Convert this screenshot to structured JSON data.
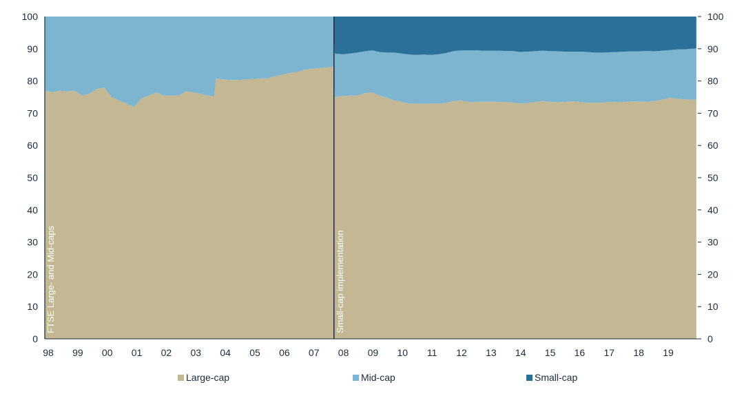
{
  "chart_data": {
    "type": "area",
    "stacked": true,
    "x_tick_labels": [
      "98",
      "99",
      "00",
      "01",
      "02",
      "03",
      "04",
      "05",
      "06",
      "07",
      "08",
      "09",
      "10",
      "11",
      "12",
      "13",
      "14",
      "15",
      "16",
      "17",
      "18",
      "19"
    ],
    "y_ticks": [
      0,
      10,
      20,
      30,
      40,
      50,
      60,
      70,
      80,
      90,
      100
    ],
    "ylim": [
      0,
      100
    ],
    "y_axis_both_sides": true,
    "grid": false,
    "legend_placement": "bottom",
    "colors": {
      "large": "#c4b894",
      "mid": "#7db4d0",
      "small": "#2b7098",
      "divider": "#1b2a3a",
      "text": "#1b2a3a"
    },
    "annotations": [
      {
        "text": "FTSE Large- and Mid-caps",
        "at_x": 1998.0
      },
      {
        "text": "Small-cap implementation",
        "at_x": 2007.72
      }
    ],
    "x": [
      1998.0,
      1998.25,
      1998.5,
      1998.75,
      1999.0,
      1999.25,
      1999.5,
      1999.75,
      2000.0,
      2000.25,
      2000.5,
      2000.75,
      2001.0,
      2001.25,
      2001.5,
      2001.75,
      2002.0,
      2002.25,
      2002.5,
      2002.75,
      2003.0,
      2003.25,
      2003.5,
      2003.7,
      2003.75,
      2004.0,
      2004.25,
      2004.5,
      2004.75,
      2005.0,
      2005.25,
      2005.5,
      2005.75,
      2006.0,
      2006.25,
      2006.5,
      2006.75,
      2007.0,
      2007.25,
      2007.5,
      2007.7,
      2007.75,
      2008.0,
      2008.25,
      2008.5,
      2008.75,
      2009.0,
      2009.25,
      2009.5,
      2009.75,
      2010.0,
      2010.25,
      2010.5,
      2010.75,
      2011.0,
      2011.25,
      2011.5,
      2011.75,
      2012.0,
      2012.25,
      2012.5,
      2012.75,
      2013.0,
      2013.25,
      2013.5,
      2013.75,
      2014.0,
      2014.25,
      2014.5,
      2014.75,
      2015.0,
      2015.25,
      2015.5,
      2015.75,
      2016.0,
      2016.25,
      2016.5,
      2016.75,
      2017.0,
      2017.25,
      2017.5,
      2017.75,
      2018.0,
      2018.25,
      2018.5,
      2018.75,
      2019.0,
      2019.25,
      2019.5,
      2019.75,
      2019.9
    ],
    "series": [
      {
        "name": "Large-cap",
        "values": [
          77,
          76.5,
          77,
          76.8,
          77,
          75.5,
          76,
          77.5,
          78,
          75,
          74,
          73,
          72,
          74.5,
          75.5,
          76.5,
          75.5,
          75.5,
          75.5,
          76.8,
          76.5,
          76,
          75.5,
          75.2,
          80.8,
          80.5,
          80.3,
          80.3,
          80.5,
          80.6,
          80.8,
          80.8,
          81.5,
          82,
          82.5,
          82.8,
          83.5,
          83.8,
          84,
          84.2,
          84.5,
          75,
          75.3,
          75.5,
          75.5,
          76.2,
          76.5,
          75.5,
          74.8,
          74,
          73.5,
          73,
          73,
          72.9,
          73,
          73,
          73.2,
          73.8,
          74,
          73.5,
          73.5,
          73.6,
          73.6,
          73.5,
          73.5,
          73.3,
          73,
          73.2,
          73.5,
          73.8,
          73.5,
          73.4,
          73.5,
          73.7,
          73.5,
          73.3,
          73.2,
          73.3,
          73.5,
          73.4,
          73.5,
          73.7,
          73.6,
          73.6,
          73.8,
          74.2,
          74.8,
          74.5,
          74.3,
          74.2,
          74.2
        ]
      },
      {
        "name": "Mid-cap",
        "values": [
          23,
          23.5,
          23,
          23.2,
          23,
          24.5,
          24,
          22.5,
          22,
          25,
          26,
          27,
          28,
          25.5,
          24.5,
          23.5,
          24.5,
          24.5,
          24.5,
          23.2,
          23.5,
          24,
          24.5,
          24.8,
          19.2,
          19.5,
          19.7,
          19.7,
          19.5,
          19.4,
          19.2,
          19.2,
          18.5,
          18,
          17.5,
          17.2,
          16.5,
          16.2,
          16,
          15.8,
          15.5,
          13.5,
          13,
          13,
          13.3,
          13,
          13,
          13.5,
          14,
          14.8,
          15,
          15.2,
          15.1,
          15.3,
          15.1,
          15.3,
          15.5,
          15.5,
          15.5,
          16,
          16,
          15.8,
          15.8,
          15.9,
          15.8,
          16,
          16,
          15.9,
          15.8,
          15.6,
          15.8,
          15.8,
          15.6,
          15.4,
          15.6,
          15.7,
          15.6,
          15.5,
          15.4,
          15.6,
          15.6,
          15.5,
          15.6,
          15.7,
          15.4,
          15.2,
          14.8,
          15.3,
          15.5,
          15.8,
          15.9
        ]
      },
      {
        "name": "Small-cap",
        "values": [
          0,
          0,
          0,
          0,
          0,
          0,
          0,
          0,
          0,
          0,
          0,
          0,
          0,
          0,
          0,
          0,
          0,
          0,
          0,
          0,
          0,
          0,
          0,
          0,
          0,
          0,
          0,
          0,
          0,
          0,
          0,
          0,
          0,
          0,
          0,
          0,
          0,
          0,
          0,
          0,
          0,
          11.5,
          11.7,
          11.5,
          11.2,
          10.8,
          10.5,
          11,
          11.2,
          11.2,
          11.5,
          11.8,
          11.9,
          11.8,
          11.9,
          11.7,
          11.3,
          10.7,
          10.5,
          10.5,
          10.5,
          10.6,
          10.6,
          10.6,
          10.7,
          10.7,
          11,
          10.9,
          10.7,
          10.6,
          10.7,
          10.8,
          10.9,
          10.9,
          10.9,
          11,
          11.2,
          11.2,
          11.1,
          11,
          10.9,
          10.8,
          10.8,
          10.7,
          10.8,
          10.6,
          10.4,
          10.2,
          10.2,
          10,
          9.9
        ]
      }
    ]
  }
}
